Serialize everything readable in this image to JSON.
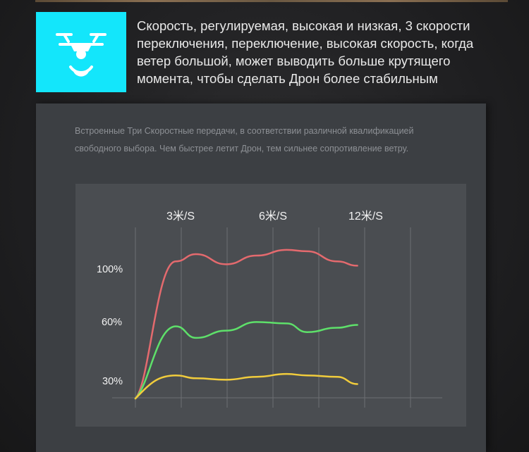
{
  "headline": "Скорость, регулируемая, высокая и низкая, 3 скорости переключения, переключение, высокая скорость, когда ветер большой, может выводить больше крутящего момента, чтобы сделать Дрон более стабильным",
  "description": {
    "line1": "Встроенные Три Скоростные передачи, в соответствии различной квалификацией",
    "line2": "свободного выбора. Чем быстрее летит Дрон, тем сильнее сопротивление ветру."
  },
  "icon": "drone-signal-icon",
  "colors": {
    "icon_bg": "#13e6fb",
    "red_line": "#e46a6e",
    "green_line": "#5ee06a",
    "yellow_line": "#f1cc3c"
  },
  "chart_data": {
    "type": "line",
    "speed_labels": [
      "3米/S",
      "6米/S",
      "12米/S"
    ],
    "y_tick_labels": [
      "100%",
      "60%",
      "30%"
    ],
    "grid": true,
    "series": [
      {
        "color": "#e46a6e",
        "x": [
          0,
          0.8,
          1.2,
          1.8,
          2.4,
          3.0,
          3.4,
          4.0,
          4.4
        ],
        "y": [
          20,
          115,
          120,
          113,
          119,
          123,
          122,
          115,
          112
        ]
      },
      {
        "color": "#5ee06a",
        "x": [
          0,
          0.8,
          1.2,
          1.8,
          2.4,
          3.0,
          3.4,
          4.0,
          4.4
        ],
        "y": [
          20,
          70,
          62,
          67,
          73,
          72,
          66,
          69,
          71
        ]
      },
      {
        "color": "#f1cc3c",
        "x": [
          0,
          0.8,
          1.2,
          1.8,
          2.4,
          3.0,
          3.4,
          4.0,
          4.4
        ],
        "y": [
          20,
          36,
          34,
          33,
          35,
          37,
          36,
          35,
          30
        ]
      }
    ]
  }
}
